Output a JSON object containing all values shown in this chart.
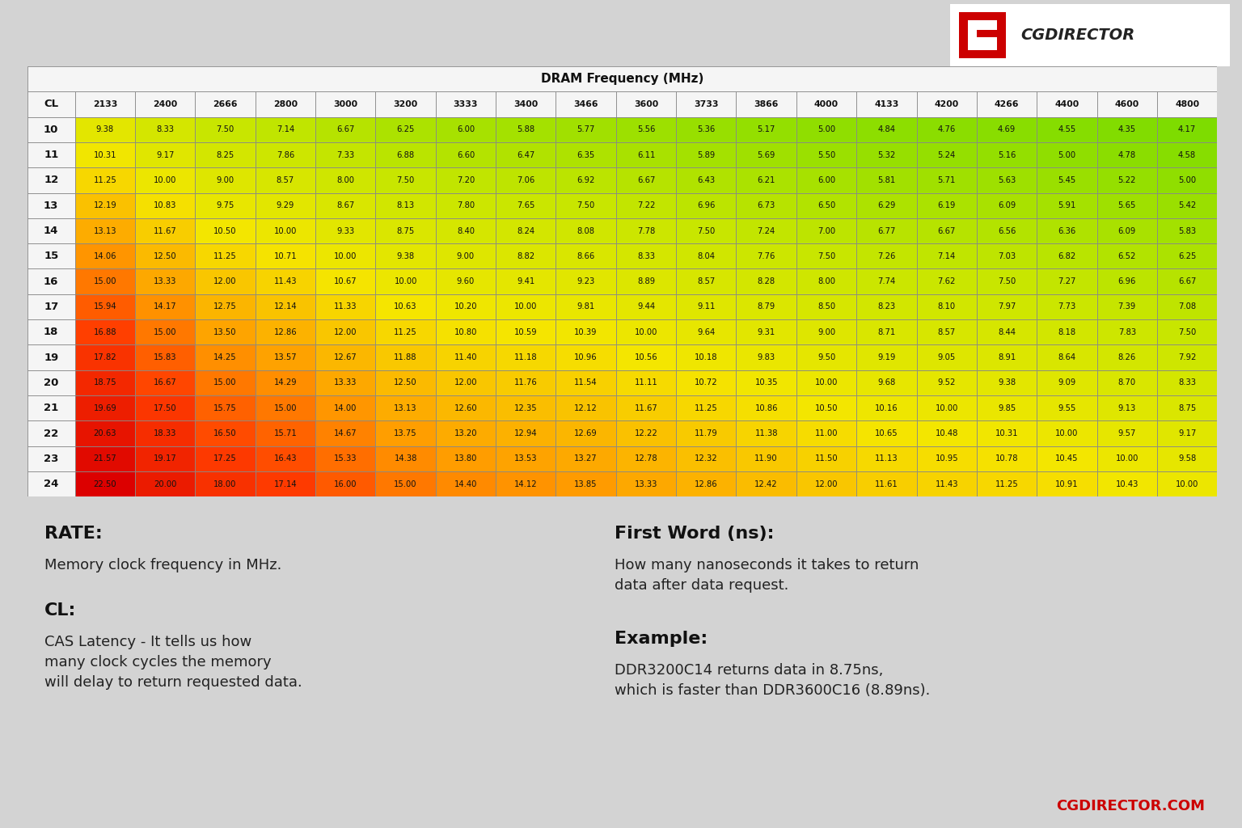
{
  "title": "DRAM Frequency (MHz)",
  "cl_values": [
    10,
    11,
    12,
    13,
    14,
    15,
    16,
    17,
    18,
    19,
    20,
    21,
    22,
    23,
    24
  ],
  "freq_columns": [
    "2133",
    "2400",
    "2666",
    "2800",
    "3000",
    "3200",
    "3333",
    "3400",
    "3466",
    "3600",
    "3733",
    "3866",
    "4000",
    "4133",
    "4200",
    "4266",
    "4400",
    "4600",
    "4800"
  ],
  "table_data": [
    [
      9.38,
      8.33,
      7.5,
      7.14,
      6.67,
      6.25,
      6.0,
      5.88,
      5.77,
      5.56,
      5.36,
      5.17,
      5.0,
      4.84,
      4.76,
      4.69,
      4.55,
      4.35,
      4.17
    ],
    [
      10.31,
      9.17,
      8.25,
      7.86,
      7.33,
      6.88,
      6.6,
      6.47,
      6.35,
      6.11,
      5.89,
      5.69,
      5.5,
      5.32,
      5.24,
      5.16,
      5.0,
      4.78,
      4.58
    ],
    [
      11.25,
      10.0,
      9.0,
      8.57,
      8.0,
      7.5,
      7.2,
      7.06,
      6.92,
      6.67,
      6.43,
      6.21,
      6.0,
      5.81,
      5.71,
      5.63,
      5.45,
      5.22,
      5.0
    ],
    [
      12.19,
      10.83,
      9.75,
      9.29,
      8.67,
      8.13,
      7.8,
      7.65,
      7.5,
      7.22,
      6.96,
      6.73,
      6.5,
      6.29,
      6.19,
      6.09,
      5.91,
      5.65,
      5.42
    ],
    [
      13.13,
      11.67,
      10.5,
      10.0,
      9.33,
      8.75,
      8.4,
      8.24,
      8.08,
      7.78,
      7.5,
      7.24,
      7.0,
      6.77,
      6.67,
      6.56,
      6.36,
      6.09,
      5.83
    ],
    [
      14.06,
      12.5,
      11.25,
      10.71,
      10.0,
      9.38,
      9.0,
      8.82,
      8.66,
      8.33,
      8.04,
      7.76,
      7.5,
      7.26,
      7.14,
      7.03,
      6.82,
      6.52,
      6.25
    ],
    [
      15.0,
      13.33,
      12.0,
      11.43,
      10.67,
      10.0,
      9.6,
      9.41,
      9.23,
      8.89,
      8.57,
      8.28,
      8.0,
      7.74,
      7.62,
      7.5,
      7.27,
      6.96,
      6.67
    ],
    [
      15.94,
      14.17,
      12.75,
      12.14,
      11.33,
      10.63,
      10.2,
      10.0,
      9.81,
      9.44,
      9.11,
      8.79,
      8.5,
      8.23,
      8.1,
      7.97,
      7.73,
      7.39,
      7.08
    ],
    [
      16.88,
      15.0,
      13.5,
      12.86,
      12.0,
      11.25,
      10.8,
      10.59,
      10.39,
      10.0,
      9.64,
      9.31,
      9.0,
      8.71,
      8.57,
      8.44,
      8.18,
      7.83,
      7.5
    ],
    [
      17.82,
      15.83,
      14.25,
      13.57,
      12.67,
      11.88,
      11.4,
      11.18,
      10.96,
      10.56,
      10.18,
      9.83,
      9.5,
      9.19,
      9.05,
      8.91,
      8.64,
      8.26,
      7.92
    ],
    [
      18.75,
      16.67,
      15.0,
      14.29,
      13.33,
      12.5,
      12.0,
      11.76,
      11.54,
      11.11,
      10.72,
      10.35,
      10.0,
      9.68,
      9.52,
      9.38,
      9.09,
      8.7,
      8.33
    ],
    [
      19.69,
      17.5,
      15.75,
      15.0,
      14.0,
      13.13,
      12.6,
      12.35,
      12.12,
      11.67,
      11.25,
      10.86,
      10.5,
      10.16,
      10.0,
      9.85,
      9.55,
      9.13,
      8.75
    ],
    [
      20.63,
      18.33,
      16.5,
      15.71,
      14.67,
      13.75,
      13.2,
      12.94,
      12.69,
      12.22,
      11.79,
      11.38,
      11.0,
      10.65,
      10.48,
      10.31,
      10.0,
      9.57,
      9.17
    ],
    [
      21.57,
      19.17,
      17.25,
      16.43,
      15.33,
      14.38,
      13.8,
      13.53,
      13.27,
      12.78,
      12.32,
      11.9,
      11.5,
      11.13,
      10.95,
      10.78,
      10.45,
      10.0,
      9.58
    ],
    [
      22.5,
      20.0,
      18.0,
      17.14,
      16.0,
      15.0,
      14.4,
      14.12,
      13.85,
      13.33,
      12.86,
      12.42,
      12.0,
      11.61,
      11.43,
      11.25,
      10.91,
      10.43,
      10.0
    ]
  ],
  "vmin": 4.17,
  "vmax": 22.5,
  "bg_color": "#d3d3d3",
  "rate_label": "RATE:",
  "rate_text": "Memory clock frequency in MHz.",
  "cl_label": "CL:",
  "cl_text": "CAS Latency - It tells us how\nmany clock cycles the memory\nwill delay to return requested data.",
  "fw_label": "First Word (ns):",
  "fw_text": "How many nanoseconds it takes to return\ndata after data request.",
  "ex_label": "Example:",
  "ex_text": "DDR3200C14 returns data in 8.75ns,\nwhich is faster than DDR3600C16 (8.89ns).",
  "footer_text": "CGDIRECTOR.COM"
}
